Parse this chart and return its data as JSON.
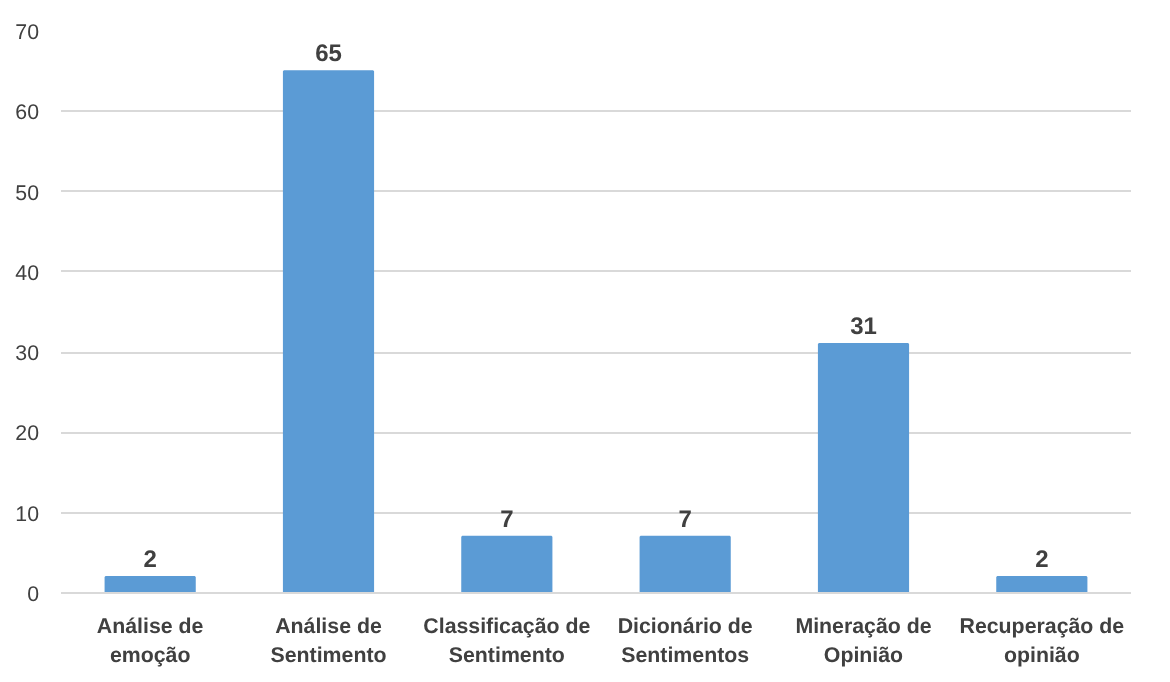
{
  "chart_data": {
    "type": "bar",
    "categories": [
      "Análise de\nemoção",
      "Análise de\nSentimento",
      "Classificação de\nSentimento",
      "Dicionário de\nSentimentos",
      "Mineração de\nOpinião",
      "Recuperação de\nopinião"
    ],
    "values": [
      2,
      65,
      7,
      7,
      31,
      2
    ],
    "color": "#5b9bd5",
    "ylim": [
      0,
      70
    ],
    "yticks": [
      0,
      10,
      20,
      30,
      40,
      50,
      60,
      70
    ],
    "grid": "y",
    "data_labels": true
  }
}
